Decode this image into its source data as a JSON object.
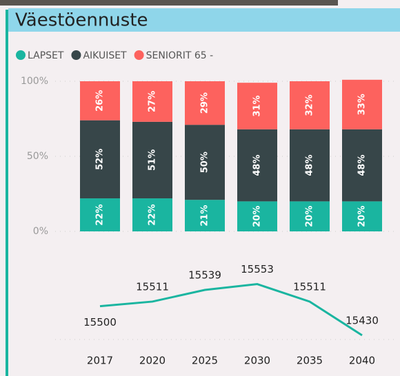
{
  "chart_data": [
    {
      "type": "stacked_bar_100",
      "title": "Väestöennuste",
      "series": [
        {
          "name": "LAPSET",
          "color": "#1ab5a0",
          "values": [
            22,
            22,
            21,
            20,
            20,
            20
          ],
          "value_labels": [
            "22%",
            "22%",
            "21%",
            "20%",
            "20%",
            "20%"
          ]
        },
        {
          "name": "AIKUISET",
          "color": "#374649",
          "values": [
            52,
            51,
            50,
            48,
            48,
            48
          ],
          "value_labels": [
            "52%",
            "51%",
            "50%",
            "48%",
            "48%",
            "48%"
          ]
        },
        {
          "name": "SENIORIT 65 -",
          "color": "#fd625e",
          "values": [
            26,
            27,
            29,
            31,
            32,
            33
          ],
          "value_labels": [
            "26%",
            "27%",
            "29%",
            "31%",
            "32%",
            "33%"
          ]
        }
      ],
      "ylim": [
        0,
        100
      ],
      "yticks": [
        {
          "value": 0,
          "label": "0%"
        },
        {
          "value": 50,
          "label": "50%"
        },
        {
          "value": 100,
          "label": "100%"
        }
      ],
      "grid": true,
      "legend": "top-left"
    },
    {
      "type": "line",
      "categories": [
        "2017",
        "2020",
        "2025",
        "2030",
        "2035",
        "2040"
      ],
      "series": [
        {
          "name": null,
          "color": "#1ab5a0",
          "values": [
            15500,
            15511,
            15539,
            15553,
            15511,
            15430
          ]
        }
      ],
      "ylim": [
        15400,
        15640
      ]
    }
  ]
}
